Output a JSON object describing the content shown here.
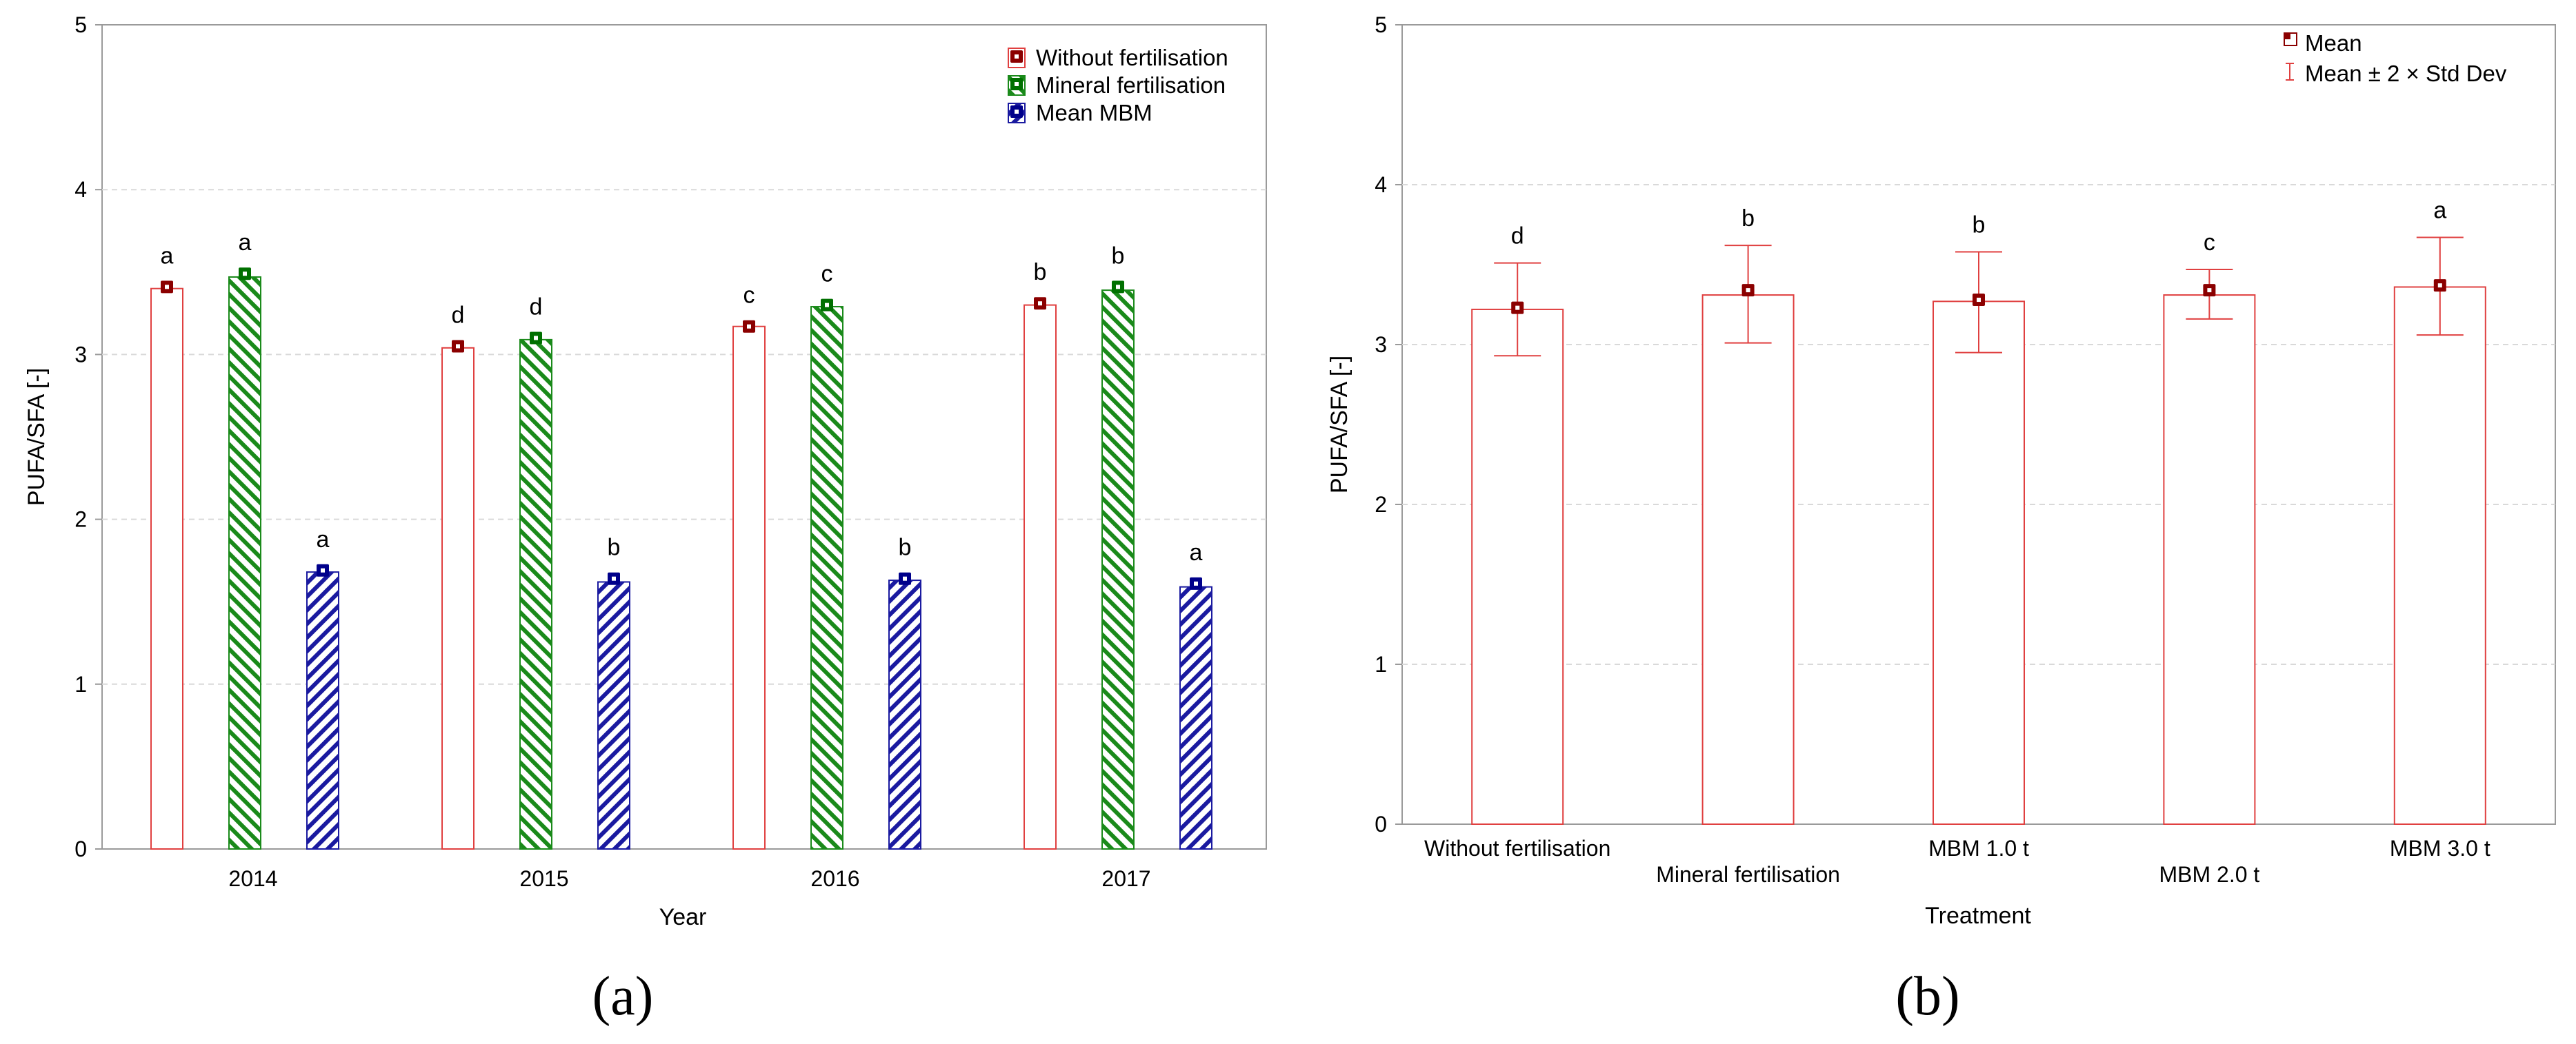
{
  "chart_data": [
    {
      "panel": "(a)",
      "type": "bar",
      "xlabel": "Year",
      "ylabel": "PUFA/SFA [-]",
      "ylim": [
        0,
        5
      ],
      "yticks": [
        "0",
        "1",
        "2",
        "3",
        "4",
        "5"
      ],
      "grid": true,
      "legend_position": "top-right",
      "categories": [
        "2014",
        "2015",
        "2016",
        "2017"
      ],
      "series": [
        {
          "name": "Without fertilisation",
          "values": [
            3.4,
            3.04,
            3.17,
            3.3
          ],
          "means": [
            3.41,
            3.05,
            3.17,
            3.31
          ],
          "letters": [
            "a",
            "d",
            "c",
            "b"
          ],
          "fill": "none",
          "color": "#e04040",
          "marker": "#8b0000"
        },
        {
          "name": "Mineral fertilisation",
          "values": [
            3.47,
            3.09,
            3.29,
            3.39
          ],
          "means": [
            3.49,
            3.1,
            3.3,
            3.41
          ],
          "letters": [
            "a",
            "d",
            "c",
            "b"
          ],
          "fill": "green-diagonal",
          "color": "#1a8a1a",
          "marker": "#007000"
        },
        {
          "name": "Mean MBM",
          "values": [
            1.68,
            1.62,
            1.63,
            1.59
          ],
          "means": [
            1.69,
            1.64,
            1.64,
            1.61
          ],
          "letters": [
            "a",
            "b",
            "b",
            "a"
          ],
          "fill": "blue-diagonal",
          "color": "#1a1aa0",
          "marker": "#00008b"
        }
      ]
    },
    {
      "panel": "(b)",
      "type": "bar",
      "xlabel": "Treatment",
      "ylabel": "PUFA/SFA [-]",
      "ylim": [
        0,
        5
      ],
      "yticks": [
        "0",
        "1",
        "2",
        "3",
        "4",
        "5"
      ],
      "grid": true,
      "legend_position": "top-right",
      "legend": [
        "Mean",
        "Mean ± 2 × Std Dev"
      ],
      "categories": [
        "Without fertilisation",
        "Mineral fertilisation",
        "MBM 1.0 t",
        "MBM 2.0 t",
        "MBM 3.0 t"
      ],
      "values": [
        3.22,
        3.31,
        3.27,
        3.31,
        3.36
      ],
      "means": [
        3.23,
        3.34,
        3.28,
        3.34,
        3.37
      ],
      "err_low": [
        2.93,
        3.01,
        2.95,
        3.16,
        3.06
      ],
      "err_high": [
        3.51,
        3.62,
        3.58,
        3.47,
        3.67
      ],
      "letters": [
        "d",
        "b",
        "b",
        "c",
        "a"
      ],
      "color": "#e04040",
      "marker": "#8b0000"
    }
  ]
}
